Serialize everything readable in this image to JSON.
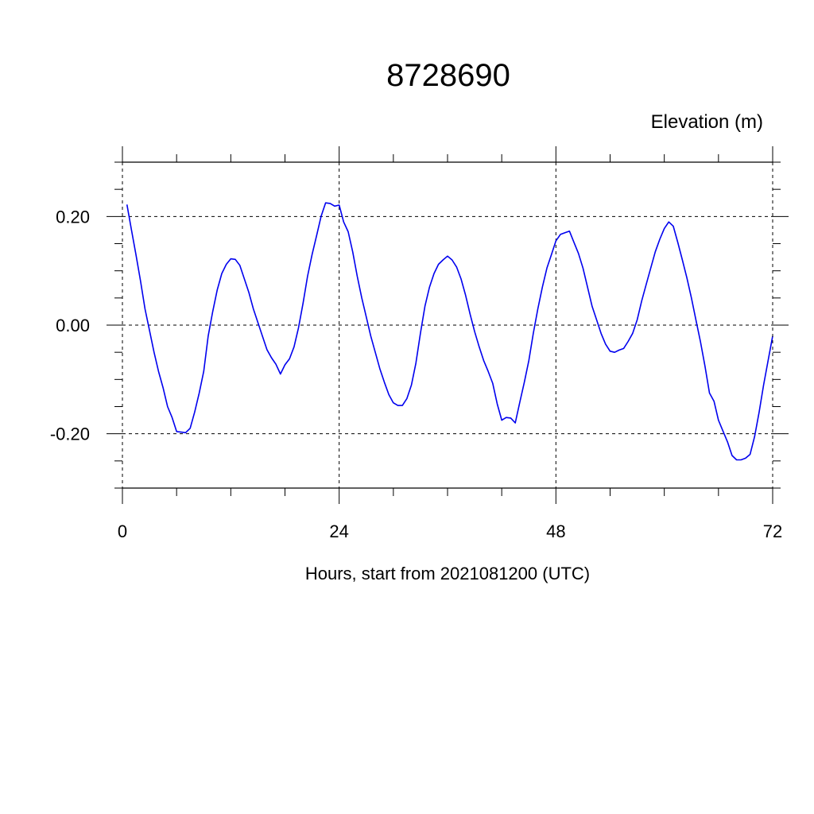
{
  "chart_data": {
    "type": "line",
    "title": "8728690",
    "ylabel": "Elevation (m)",
    "xlabel": "Hours, start from 2021081200 (UTC)",
    "xlim": [
      0,
      72
    ],
    "ylim": [
      -0.3,
      0.3
    ],
    "x_ticks": [
      0,
      24,
      48,
      72
    ],
    "x_tick_labels": [
      "0",
      "24",
      "48",
      "72"
    ],
    "y_ticks": [
      -0.2,
      0.0,
      0.2
    ],
    "y_tick_labels": [
      "-0.20",
      "0.00",
      "0.20"
    ],
    "grid": true,
    "colors": {
      "series": "#0000ee",
      "grid": "#000000",
      "axis": "#000000"
    },
    "series": [
      {
        "x": [
          0.5,
          1.0,
          1.5,
          2.0,
          2.5,
          3.0,
          3.5,
          4.0,
          4.5,
          5.0,
          5.5,
          6.0,
          6.5,
          7.0,
          7.5,
          8.0,
          8.5,
          9.0,
          9.5,
          10.0,
          10.5,
          11.0,
          11.5,
          12.0,
          12.5,
          13.0,
          13.5,
          14.0,
          14.5,
          15.0,
          15.5,
          16.0,
          16.5,
          17.0,
          17.5,
          18.0,
          18.5,
          19.0,
          19.5,
          20.0,
          20.5,
          21.0,
          21.5,
          22.0,
          22.5,
          23.0,
          23.5,
          24.0,
          24.5,
          25.0,
          25.5,
          26.0,
          26.5,
          27.0,
          27.5,
          28.0,
          28.5,
          29.0,
          29.5,
          30.0,
          30.5,
          31.0,
          31.5,
          32.0,
          32.5,
          33.0,
          33.5,
          34.0,
          34.5,
          35.0,
          35.5,
          36.0,
          36.5,
          37.0,
          37.5,
          38.0,
          38.5,
          39.0,
          39.5,
          40.0,
          40.5,
          41.0,
          41.5,
          42.0,
          42.5,
          43.0,
          43.5,
          44.0,
          44.5,
          45.0,
          45.5,
          46.0,
          46.5,
          47.0,
          47.5,
          48.0,
          48.5,
          49.0,
          49.5,
          50.0,
          50.5,
          51.0,
          51.5,
          52.0,
          52.5,
          53.0,
          53.5,
          54.0,
          54.5,
          55.0,
          55.5,
          56.0,
          56.5,
          57.0,
          57.5,
          58.0,
          58.5,
          59.0,
          59.5,
          60.0,
          60.5,
          61.0,
          61.5,
          62.0,
          62.5,
          63.0,
          63.5,
          64.0,
          64.5,
          65.0,
          65.5,
          66.0,
          66.5,
          67.0,
          67.5,
          68.0,
          68.5,
          69.0,
          69.5,
          70.0,
          70.5,
          71.0,
          71.5,
          72.0
        ],
        "y": [
          0.222,
          0.175,
          0.13,
          0.082,
          0.03,
          -0.01,
          -0.05,
          -0.085,
          -0.115,
          -0.15,
          -0.17,
          -0.196,
          -0.197,
          -0.198,
          -0.19,
          -0.16,
          -0.125,
          -0.085,
          -0.02,
          0.025,
          0.065,
          0.095,
          0.112,
          0.122,
          0.121,
          0.11,
          0.085,
          0.06,
          0.03,
          0.005,
          -0.02,
          -0.045,
          -0.06,
          -0.072,
          -0.09,
          -0.073,
          -0.062,
          -0.04,
          -0.005,
          0.04,
          0.09,
          0.13,
          0.165,
          0.2,
          0.225,
          0.224,
          0.219,
          0.221,
          0.19,
          0.172,
          0.135,
          0.09,
          0.05,
          0.015,
          -0.02,
          -0.05,
          -0.08,
          -0.105,
          -0.128,
          -0.143,
          -0.148,
          -0.148,
          -0.135,
          -0.11,
          -0.07,
          -0.015,
          0.035,
          0.07,
          0.095,
          0.112,
          0.12,
          0.127,
          0.12,
          0.107,
          0.085,
          0.055,
          0.02,
          -0.012,
          -0.04,
          -0.065,
          -0.085,
          -0.107,
          -0.145,
          -0.175,
          -0.17,
          -0.171,
          -0.18,
          -0.142,
          -0.105,
          -0.065,
          -0.015,
          0.03,
          0.07,
          0.105,
          0.13,
          0.155,
          0.167,
          0.17,
          0.173,
          0.152,
          0.132,
          0.105,
          0.07,
          0.035,
          0.01,
          -0.015,
          -0.035,
          -0.048,
          -0.05,
          -0.046,
          -0.043,
          -0.03,
          -0.015,
          0.01,
          0.045,
          0.075,
          0.105,
          0.135,
          0.158,
          0.178,
          0.19,
          0.182,
          0.152,
          0.12,
          0.087,
          0.05,
          0.01,
          -0.03,
          -0.075,
          -0.125,
          -0.14,
          -0.175,
          -0.195,
          -0.215,
          -0.24,
          -0.248,
          -0.248,
          -0.245,
          -0.238,
          -0.205,
          -0.16,
          -0.11,
          -0.065,
          -0.02
        ]
      }
    ]
  }
}
